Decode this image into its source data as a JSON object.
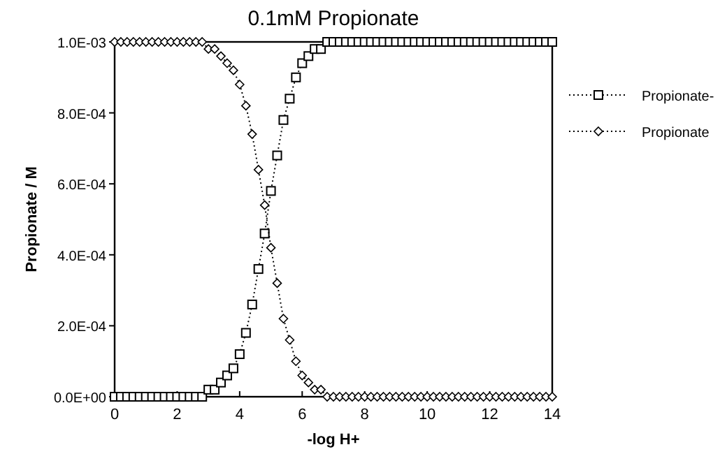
{
  "chart_data": {
    "type": "line",
    "title": "0.1mM Propionate",
    "xlabel": "-log H+",
    "ylabel": "Propionate / M",
    "x": [
      0,
      0.2,
      0.4,
      0.6,
      0.8,
      1,
      1.2,
      1.4,
      1.6,
      1.8,
      2,
      2.2,
      2.4,
      2.6,
      2.8,
      3,
      3.2,
      3.4,
      3.6,
      3.8,
      4,
      4.2,
      4.4,
      4.6,
      4.8,
      5,
      5.2,
      5.4,
      5.6,
      5.8,
      6,
      6.2,
      6.4,
      6.6,
      6.8,
      7,
      7.2,
      7.4,
      7.6,
      7.8,
      8,
      8.2,
      8.4,
      8.6,
      8.8,
      9,
      9.2,
      9.4,
      9.6,
      9.8,
      10,
      10.2,
      10.4,
      10.6,
      10.8,
      11,
      11.2,
      11.4,
      11.6,
      11.8,
      12,
      12.2,
      12.4,
      12.6,
      12.8,
      13,
      13.2,
      13.4,
      13.6,
      13.8,
      14
    ],
    "series": [
      {
        "name": "Propionate-",
        "color": "#000000",
        "marker": "square",
        "values": [
          0,
          0,
          0,
          0,
          0,
          0,
          0,
          0,
          0,
          0,
          0,
          0,
          0,
          0,
          0,
          2e-05,
          2e-05,
          4e-05,
          6e-05,
          8e-05,
          0.00012,
          0.00018,
          0.00026,
          0.00036,
          0.00046,
          0.00058,
          0.00068,
          0.00078,
          0.00084,
          0.0009,
          0.00094,
          0.00096,
          0.00098,
          0.00098,
          0.001,
          0.001,
          0.001,
          0.001,
          0.001,
          0.001,
          0.001,
          0.001,
          0.001,
          0.001,
          0.001,
          0.001,
          0.001,
          0.001,
          0.001,
          0.001,
          0.001,
          0.001,
          0.001,
          0.001,
          0.001,
          0.001,
          0.001,
          0.001,
          0.001,
          0.001,
          0.001,
          0.001,
          0.001,
          0.001,
          0.001,
          0.001,
          0.001,
          0.001,
          0.001,
          0.001,
          0.001
        ]
      },
      {
        "name": "Propionate",
        "color": "#000000",
        "marker": "diamond",
        "values": [
          0.001,
          0.001,
          0.001,
          0.001,
          0.001,
          0.001,
          0.001,
          0.001,
          0.001,
          0.001,
          0.001,
          0.001,
          0.001,
          0.001,
          0.001,
          0.00098,
          0.00098,
          0.00096,
          0.00094,
          0.00092,
          0.00088,
          0.00082,
          0.00074,
          0.00064,
          0.00054,
          0.00042,
          0.00032,
          0.00022,
          0.00016,
          0.0001,
          6e-05,
          4e-05,
          2e-05,
          2e-05,
          0,
          0,
          0,
          0,
          0,
          0,
          0,
          0,
          0,
          0,
          0,
          0,
          0,
          0,
          0,
          0,
          0,
          0,
          0,
          0,
          0,
          0,
          0,
          0,
          0,
          0,
          0,
          0,
          0,
          0,
          0,
          0,
          0,
          0,
          0,
          0,
          0
        ]
      }
    ],
    "xlim": [
      0,
      14
    ],
    "xticks": [
      0,
      2,
      4,
      6,
      8,
      10,
      12,
      14
    ],
    "ylim": [
      0,
      0.001
    ],
    "yticks": [
      {
        "value": 0,
        "label": "0.0E+00"
      },
      {
        "value": 0.0002,
        "label": "2.0E-04"
      },
      {
        "value": 0.0004,
        "label": "4.0E-04"
      },
      {
        "value": 0.0006,
        "label": "6.0E-04"
      },
      {
        "value": 0.0008,
        "label": "8.0E-04"
      },
      {
        "value": 0.001,
        "label": "1.0E-03"
      }
    ],
    "grid": false,
    "legend": "right",
    "line_style": "dotted"
  }
}
